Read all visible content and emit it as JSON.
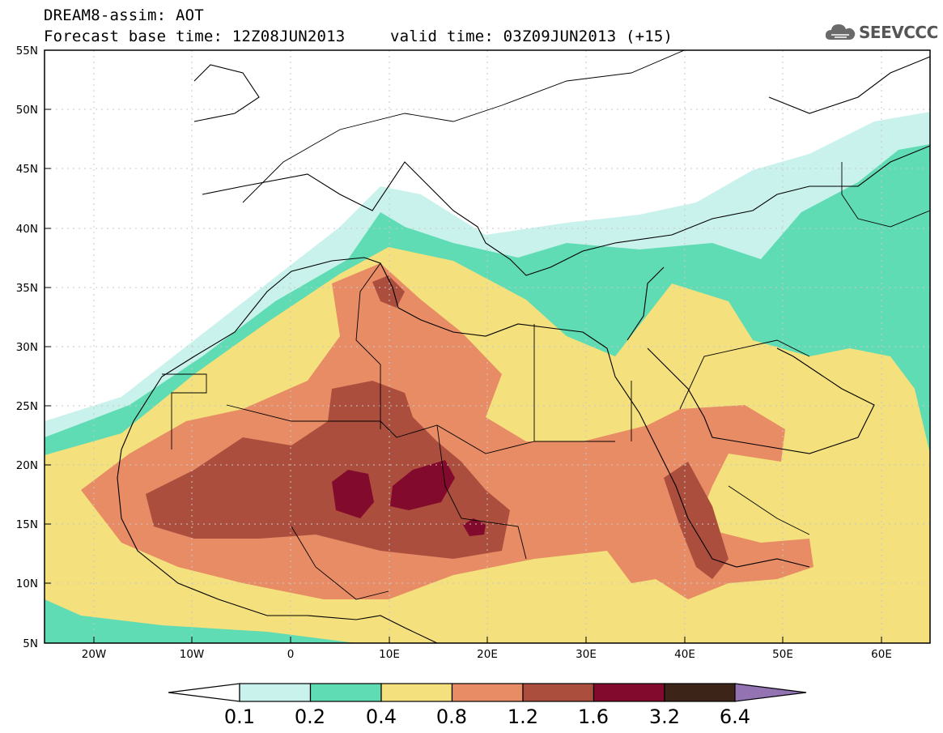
{
  "header": {
    "model_title": "DREAM8-assim: AOT",
    "base_time": "Forecast base time: 12Z08JUN2013",
    "valid_time": "valid time: 03Z09JUN2013 (+15)",
    "logo_text": "SEEVCCC",
    "logo_icon": "cloud-icon"
  },
  "map": {
    "lon_range": [
      -25,
      65
    ],
    "lat_range": [
      5,
      55
    ],
    "lon_ticks": [
      "20W",
      "10W",
      "0",
      "10E",
      "20E",
      "30E",
      "40E",
      "50E",
      "60E"
    ],
    "lat_ticks": [
      "55N",
      "50N",
      "45N",
      "40N",
      "35N",
      "30N",
      "25N",
      "20N",
      "15N",
      "10N",
      "5N"
    ],
    "variable": "Aerosol optical thickness"
  },
  "colorbar": {
    "levels": [
      "0.1",
      "0.2",
      "0.4",
      "0.8",
      "1.2",
      "1.6",
      "3.2",
      "6.4"
    ],
    "colors": [
      "#c9f2ec",
      "#5fdcb4",
      "#f4e07c",
      "#e88c66",
      "#ac4e3e",
      "#820a2c",
      "#3c2418",
      "#9473b3"
    ]
  }
}
